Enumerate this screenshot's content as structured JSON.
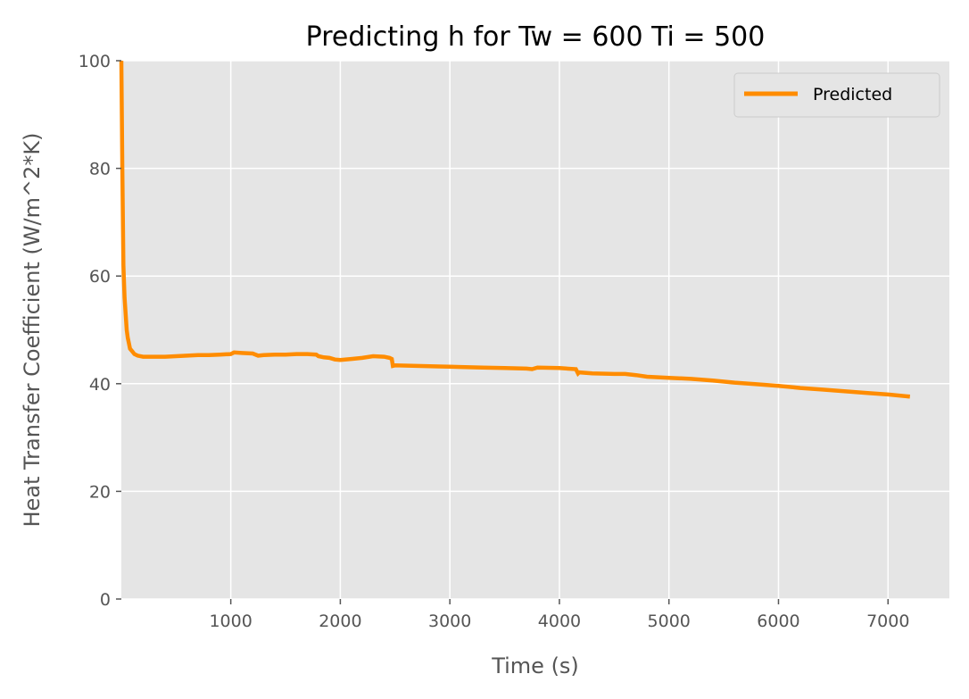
{
  "chart_data": {
    "type": "line",
    "title": "Predicting h for Tw = 600 Ti = 500",
    "xlabel": "Time (s)",
    "ylabel": "Heat Transfer Coefficient (W/m^2*K)",
    "xlim": [
      1,
      7560
    ],
    "ylim": [
      0,
      100
    ],
    "x_ticks": [
      1000,
      2000,
      3000,
      4000,
      5000,
      6000,
      7000
    ],
    "x_tick_labels": [
      "1000",
      "2000",
      "3000",
      "4000",
      "5000",
      "6000",
      "7000"
    ],
    "y_ticks": [
      0,
      20,
      40,
      60,
      80,
      100
    ],
    "y_tick_labels": [
      "0",
      "20",
      "40",
      "60",
      "80",
      "100"
    ],
    "grid": true,
    "legend_position": "top-right",
    "series": [
      {
        "name": "Predicted",
        "color": "#ff8c00",
        "x": [
          1,
          10,
          20,
          30,
          40,
          50,
          60,
          70,
          80,
          100,
          120,
          150,
          200,
          300,
          400,
          500,
          600,
          700,
          800,
          900,
          1000,
          1030,
          1100,
          1200,
          1250,
          1300,
          1400,
          1500,
          1600,
          1700,
          1780,
          1800,
          1850,
          1900,
          1950,
          2000,
          2100,
          2200,
          2300,
          2400,
          2450,
          2470,
          2480,
          2500,
          2700,
          2900,
          3100,
          3300,
          3500,
          3700,
          3750,
          3800,
          4000,
          4150,
          4170,
          4180,
          4300,
          4500,
          4600,
          4700,
          4800,
          5000,
          5200,
          5400,
          5600,
          5800,
          6000,
          6200,
          6400,
          6600,
          6800,
          7000,
          7200
        ],
        "y": [
          100,
          80,
          62,
          56,
          53,
          50,
          48.5,
          47.5,
          46.5,
          46,
          45.5,
          45.2,
          45,
          45,
          45,
          45.1,
          45.2,
          45.3,
          45.3,
          45.4,
          45.5,
          45.8,
          45.7,
          45.6,
          45.2,
          45.3,
          45.4,
          45.4,
          45.5,
          45.5,
          45.4,
          45.1,
          44.9,
          44.8,
          44.5,
          44.4,
          44.6,
          44.8,
          45.1,
          45.0,
          44.8,
          44.6,
          43.3,
          43.4,
          43.3,
          43.2,
          43.1,
          43.0,
          42.9,
          42.8,
          42.7,
          43.0,
          42.9,
          42.7,
          41.9,
          42.1,
          41.9,
          41.8,
          41.8,
          41.6,
          41.3,
          41.1,
          40.9,
          40.6,
          40.2,
          39.9,
          39.6,
          39.2,
          38.9,
          38.6,
          38.3,
          38.0,
          37.6
        ]
      }
    ]
  }
}
